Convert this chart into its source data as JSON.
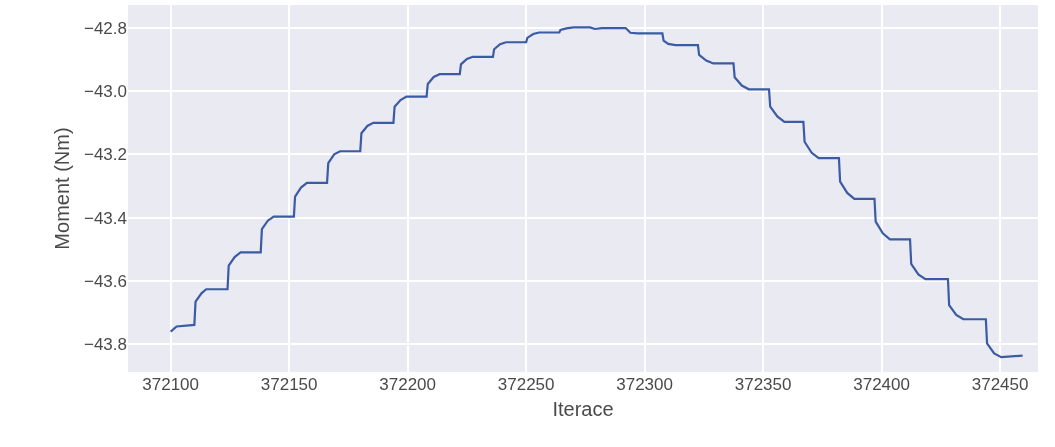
{
  "chart_data": {
    "type": "line",
    "xlabel": "Iterace",
    "ylabel": "Moment (Nm)",
    "xlim": [
      372082,
      372466
    ],
    "ylim": [
      -43.889,
      -42.727
    ],
    "xticks": [
      372100,
      372150,
      372200,
      372250,
      372300,
      372350,
      372400,
      372450
    ],
    "yticks": [
      {
        "value": -43.8,
        "label": "−43.8"
      },
      {
        "value": -43.6,
        "label": "−43.6"
      },
      {
        "value": -43.4,
        "label": "−43.4"
      },
      {
        "value": -43.2,
        "label": "−43.2"
      },
      {
        "value": -43.0,
        "label": "−43.0"
      },
      {
        "value": -42.8,
        "label": "−42.8"
      }
    ],
    "grid": true,
    "marker": "none",
    "line_style": "solid",
    "series": [
      {
        "color": "#3b5ba5",
        "x": [
          372100,
          372102.5,
          372110,
          372110.5,
          372113,
          372115,
          372124,
          372124.5,
          372127,
          372129.5,
          372138,
          372138.5,
          372141,
          372143.5,
          372152,
          372152.5,
          372155,
          372157.5,
          372166,
          372166.5,
          372169,
          372171.5,
          372180,
          372180.5,
          372183,
          372185.5,
          372194,
          372194.5,
          372197,
          372199.5,
          372208,
          372208.5,
          372211,
          372213.5,
          372222,
          372222.5,
          372225,
          372227.5,
          372236,
          372236.5,
          372239,
          372241.5,
          372250,
          372250.5,
          372253,
          372255.5,
          372264,
          372264.5,
          372267,
          372270,
          372277,
          372279,
          372282,
          372292,
          372294,
          372297,
          372307.5,
          372308,
          372310,
          372313,
          372322.5,
          372323,
          372326,
          372329,
          372337.5,
          372338,
          372341,
          372344,
          372352.5,
          372353,
          372356,
          372359,
          372367,
          372367.5,
          372370.5,
          372373.5,
          372382,
          372382.5,
          372385.5,
          372388.5,
          372397,
          372397.5,
          372400.5,
          372403.5,
          372412,
          372412.5,
          372415.5,
          372418.5,
          372428,
          372428.5,
          372431.5,
          372434.5,
          372444,
          372444.5,
          372447.5,
          372450.5,
          372459.5
        ],
        "values": [
          -43.761,
          -43.745,
          -43.74,
          -43.666,
          -43.64,
          -43.627,
          -43.627,
          -43.552,
          -43.525,
          -43.51,
          -43.51,
          -43.437,
          -43.41,
          -43.397,
          -43.397,
          -43.334,
          -43.305,
          -43.29,
          -43.29,
          -43.228,
          -43.2,
          -43.19,
          -43.19,
          -43.133,
          -43.11,
          -43.1,
          -43.1,
          -43.049,
          -43.028,
          -43.017,
          -43.017,
          -42.977,
          -42.955,
          -42.946,
          -42.946,
          -42.915,
          -42.898,
          -42.891,
          -42.891,
          -42.867,
          -42.851,
          -42.845,
          -42.845,
          -42.831,
          -42.819,
          -42.814,
          -42.814,
          -42.806,
          -42.801,
          -42.798,
          -42.798,
          -42.803,
          -42.8,
          -42.8,
          -42.815,
          -42.817,
          -42.817,
          -42.84,
          -42.85,
          -42.854,
          -42.854,
          -42.885,
          -42.903,
          -42.912,
          -42.912,
          -42.956,
          -42.982,
          -42.994,
          -42.994,
          -43.049,
          -43.08,
          -43.097,
          -43.097,
          -43.16,
          -43.195,
          -43.212,
          -43.212,
          -43.286,
          -43.322,
          -43.341,
          -43.341,
          -43.413,
          -43.45,
          -43.469,
          -43.469,
          -43.547,
          -43.58,
          -43.595,
          -43.595,
          -43.677,
          -43.708,
          -43.722,
          -43.722,
          -43.798,
          -43.83,
          -43.842,
          -43.837
        ]
      }
    ]
  }
}
